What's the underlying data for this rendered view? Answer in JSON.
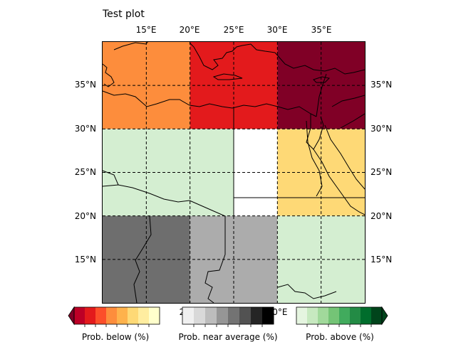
{
  "title": "Test plot",
  "map": {
    "lon_labels_top": [
      "15°E",
      "20°E",
      "25°E",
      "30°E",
      "35°E"
    ],
    "lat_labels": [
      "35°N",
      "30°N",
      "25°N",
      "20°N",
      "15°N"
    ],
    "bottom_labels_visible": [
      "20°E",
      "30°E"
    ],
    "lon_range": [
      10,
      40
    ],
    "lat_range": [
      10,
      40
    ],
    "gridlines": "dashed",
    "cells": [
      {
        "lon": [
          10,
          20
        ],
        "lat": [
          30,
          40
        ],
        "category": "below",
        "color": "#fd8d3c"
      },
      {
        "lon": [
          20,
          30
        ],
        "lat": [
          30,
          40
        ],
        "category": "below",
        "color": "#e31a1c"
      },
      {
        "lon": [
          30,
          40
        ],
        "lat": [
          30,
          40
        ],
        "category": "below",
        "color": "#800026"
      },
      {
        "lon": [
          10,
          25
        ],
        "lat": [
          20,
          30
        ],
        "category": "above",
        "color": "#d4eed1"
      },
      {
        "lon": [
          25,
          30
        ],
        "lat": [
          20,
          30
        ],
        "category": "none",
        "color": "#ffffff"
      },
      {
        "lon": [
          30,
          40
        ],
        "lat": [
          20,
          30
        ],
        "category": "below",
        "color": "#fed976"
      },
      {
        "lon": [
          10,
          20
        ],
        "lat": [
          10,
          20
        ],
        "category": "near",
        "color": "#6e6e6e"
      },
      {
        "lon": [
          20,
          30
        ],
        "lat": [
          10,
          20
        ],
        "category": "near",
        "color": "#acacac"
      },
      {
        "lon": [
          30,
          40
        ],
        "lat": [
          10,
          20
        ],
        "category": "above",
        "color": "#d4eed1"
      }
    ]
  },
  "colorbars": [
    {
      "label": "Prob. below (%)",
      "colors": [
        "#bd0026",
        "#e31a1c",
        "#fc4e2a",
        "#fd8d3c",
        "#feb24c",
        "#fed976",
        "#ffeda0",
        "#ffffcc"
      ],
      "extend": "left",
      "extend_color": "#800026"
    },
    {
      "label": "Prob. near average (%)",
      "colors": [
        "#f0f0f0",
        "#d9d9d9",
        "#bdbdbd",
        "#969696",
        "#737373",
        "#525252",
        "#252525",
        "#000000"
      ],
      "extend": "none"
    },
    {
      "label": "Prob. above (%)",
      "colors": [
        "#e5f5e0",
        "#c7e9c0",
        "#a1d99b",
        "#74c476",
        "#41ab5d",
        "#238b45",
        "#006d2c",
        "#00441b"
      ],
      "extend": "right",
      "extend_color": "#00441b"
    }
  ]
}
